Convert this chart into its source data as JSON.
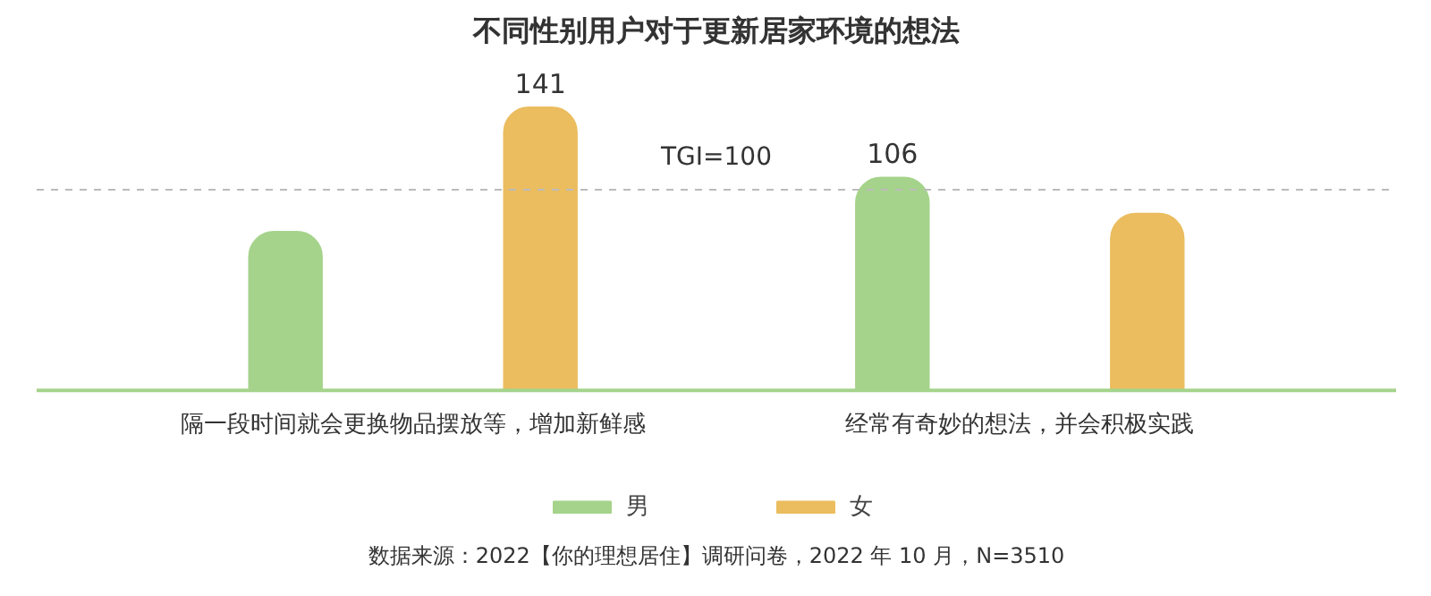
{
  "chart_data": {
    "type": "bar",
    "title": "不同性别用户对于更新居家环境的想法",
    "categories": [
      "隔一段时间就会更换物品摆放等，增加新鲜感",
      "经常有奇妙的想法，并会积极实践"
    ],
    "series": [
      {
        "name": "男",
        "color": "#a5d38b",
        "values": [
          79,
          106
        ],
        "value_labels": [
          null,
          "106"
        ]
      },
      {
        "name": "女",
        "color": "#ebbd5f",
        "values": [
          141,
          88
        ],
        "value_labels": [
          "141",
          null
        ]
      }
    ],
    "ref_lines": [
      {
        "axis": "y",
        "value": 100,
        "label": "TGI=100",
        "color": "#bbbbbb",
        "line_style": "dashed"
      }
    ],
    "legend": "bottom",
    "annotations": [
      "数据来源：2022【你的理想居住】调研问卷，2022 年 10 月，N=3510"
    ]
  }
}
